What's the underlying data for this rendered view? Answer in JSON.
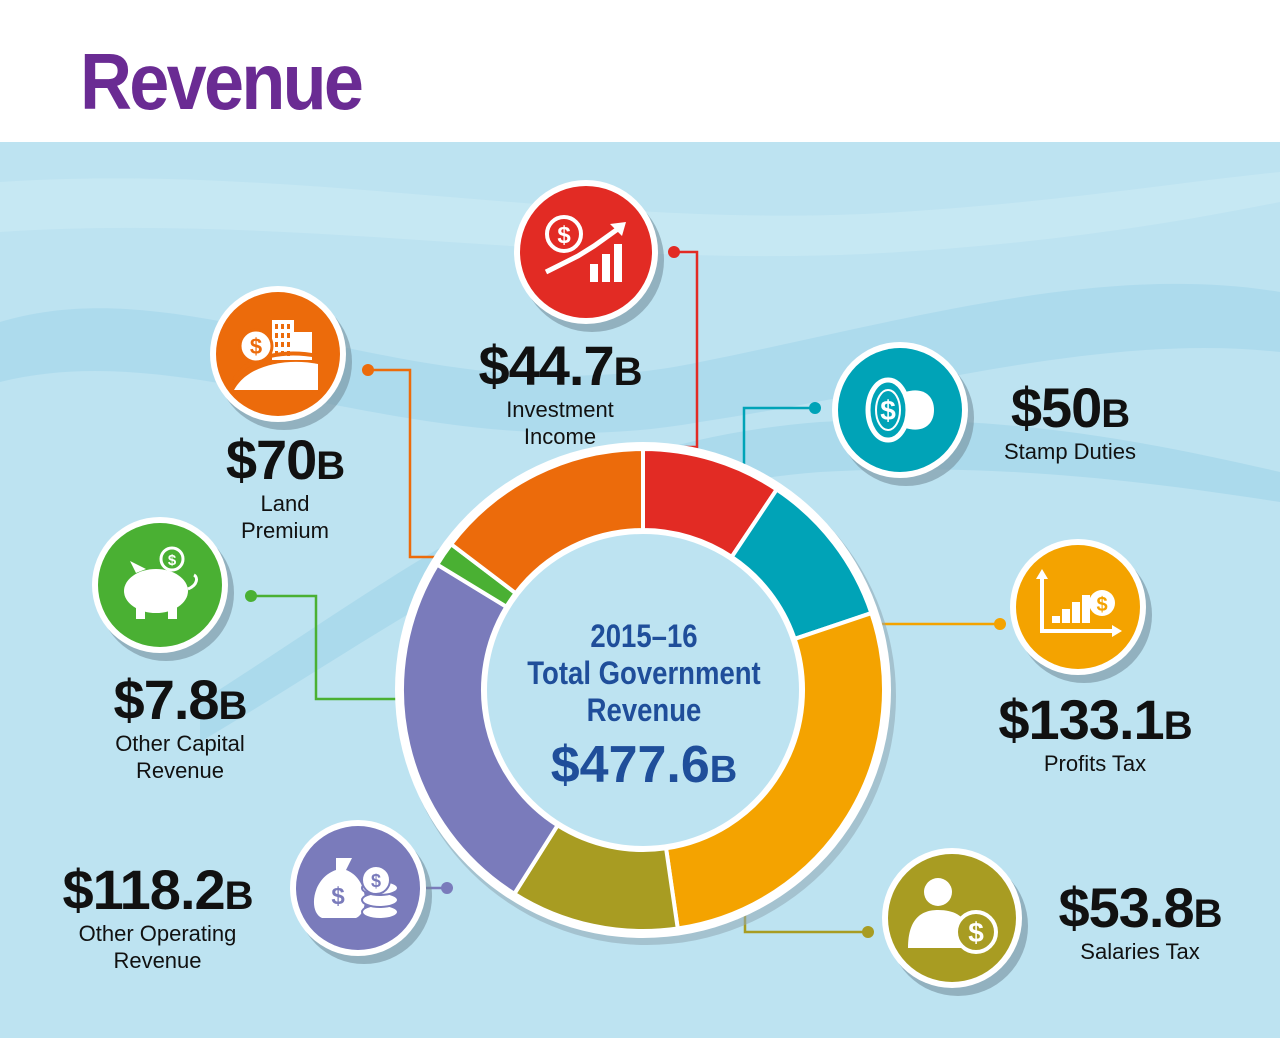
{
  "title": "Revenue",
  "center": {
    "year": "2015–16",
    "line1": "Total Government",
    "line2": "Revenue",
    "total_value": "$477.6",
    "total_unit": "B"
  },
  "colors": {
    "title": "#6a2b93",
    "background": "#bde3f1",
    "center_text": "#1f4e9a"
  },
  "chart_data": {
    "type": "pie",
    "total": 477.6,
    "unit": "B",
    "categories": [
      "Investment Income",
      "Stamp Duties",
      "Profits Tax",
      "Salaries Tax",
      "Other Operating Revenue",
      "Other Capital Revenue",
      "Land Premium"
    ],
    "values": [
      44.7,
      50,
      133.1,
      53.8,
      118.2,
      7.8,
      70
    ],
    "slice_colors": [
      "#e22b24",
      "#00a3b7",
      "#f4a300",
      "#a89c22",
      "#7a7bbb",
      "#4ab033",
      "#ec6b0b"
    ],
    "items": [
      {
        "value": 44.7,
        "value_text": "$44.7",
        "unit": "B",
        "caption": "Investment\nIncome",
        "color": "#e22b24",
        "icon": "chart-growth-icon"
      },
      {
        "value": 50,
        "value_text": "$50",
        "unit": "B",
        "caption": "Stamp Duties",
        "color": "#00a3b7",
        "icon": "stamp-icon"
      },
      {
        "value": 133.1,
        "value_text": "$133.1",
        "unit": "B",
        "caption": "Profits Tax",
        "color": "#f4a300",
        "icon": "bar-chart-coins-icon"
      },
      {
        "value": 53.8,
        "value_text": "$53.8",
        "unit": "B",
        "caption": "Salaries Tax",
        "color": "#a89c22",
        "icon": "person-coin-icon"
      },
      {
        "value": 118.2,
        "value_text": "$118.2",
        "unit": "B",
        "caption": "Other Operating\nRevenue",
        "color": "#7a7bbb",
        "icon": "money-bag-icon"
      },
      {
        "value": 7.8,
        "value_text": "$7.8",
        "unit": "B",
        "caption": "Other Capital\nRevenue",
        "color": "#4ab033",
        "icon": "piggy-bank-icon"
      },
      {
        "value": 70,
        "value_text": "$70",
        "unit": "B",
        "caption": "Land\nPremium",
        "color": "#ec6b0b",
        "icon": "buildings-icon"
      }
    ]
  }
}
